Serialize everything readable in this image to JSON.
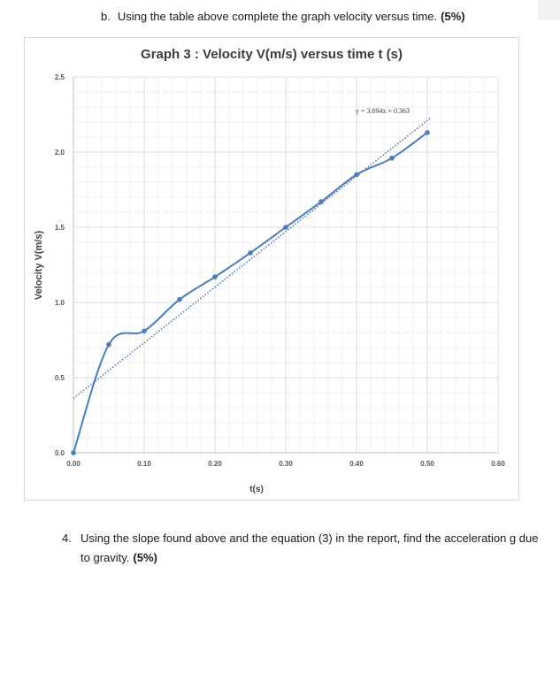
{
  "question_b": {
    "label": "b.",
    "text": "Using the table above complete the graph velocity versus time.",
    "points": "(5%)"
  },
  "question_4": {
    "number": "4.",
    "text": "Using the slope found above and the equation (3) in the report, find the acceleration g due to gravity.",
    "points": "(5%)"
  },
  "chart_data": {
    "type": "scatter",
    "title": "Graph 3 : Velocity V(m/s) versus time t (s)",
    "xlabel": "t(s)",
    "ylabel": "Velocity V(m/s)",
    "xlim": [
      0,
      0.6
    ],
    "ylim": [
      0,
      2.5
    ],
    "x_ticks": [
      "0.00",
      "0.10",
      "0.20",
      "0.30",
      "0.40",
      "0.50",
      "0.60"
    ],
    "y_ticks": [
      "0.0",
      "0.5",
      "1.0",
      "1.5",
      "2.0",
      "2.5"
    ],
    "grid": true,
    "minor_grid": true,
    "series": [
      {
        "x": [
          0.0,
          0.05,
          0.1,
          0.15,
          0.2,
          0.25,
          0.3,
          0.35,
          0.4,
          0.45,
          0.5
        ],
        "y": [
          0.0,
          0.72,
          0.81,
          1.02,
          1.17,
          1.33,
          1.5,
          1.67,
          1.85,
          1.96,
          2.13
        ],
        "color": "#4a7ebb",
        "line": "smooth"
      }
    ],
    "trendline": {
      "type": "linear",
      "slope": 3.694,
      "intercept": 0.363,
      "color": "#4a7ebb",
      "style": "dotted",
      "equation_label": "y = 3.694x + 0.363"
    }
  }
}
